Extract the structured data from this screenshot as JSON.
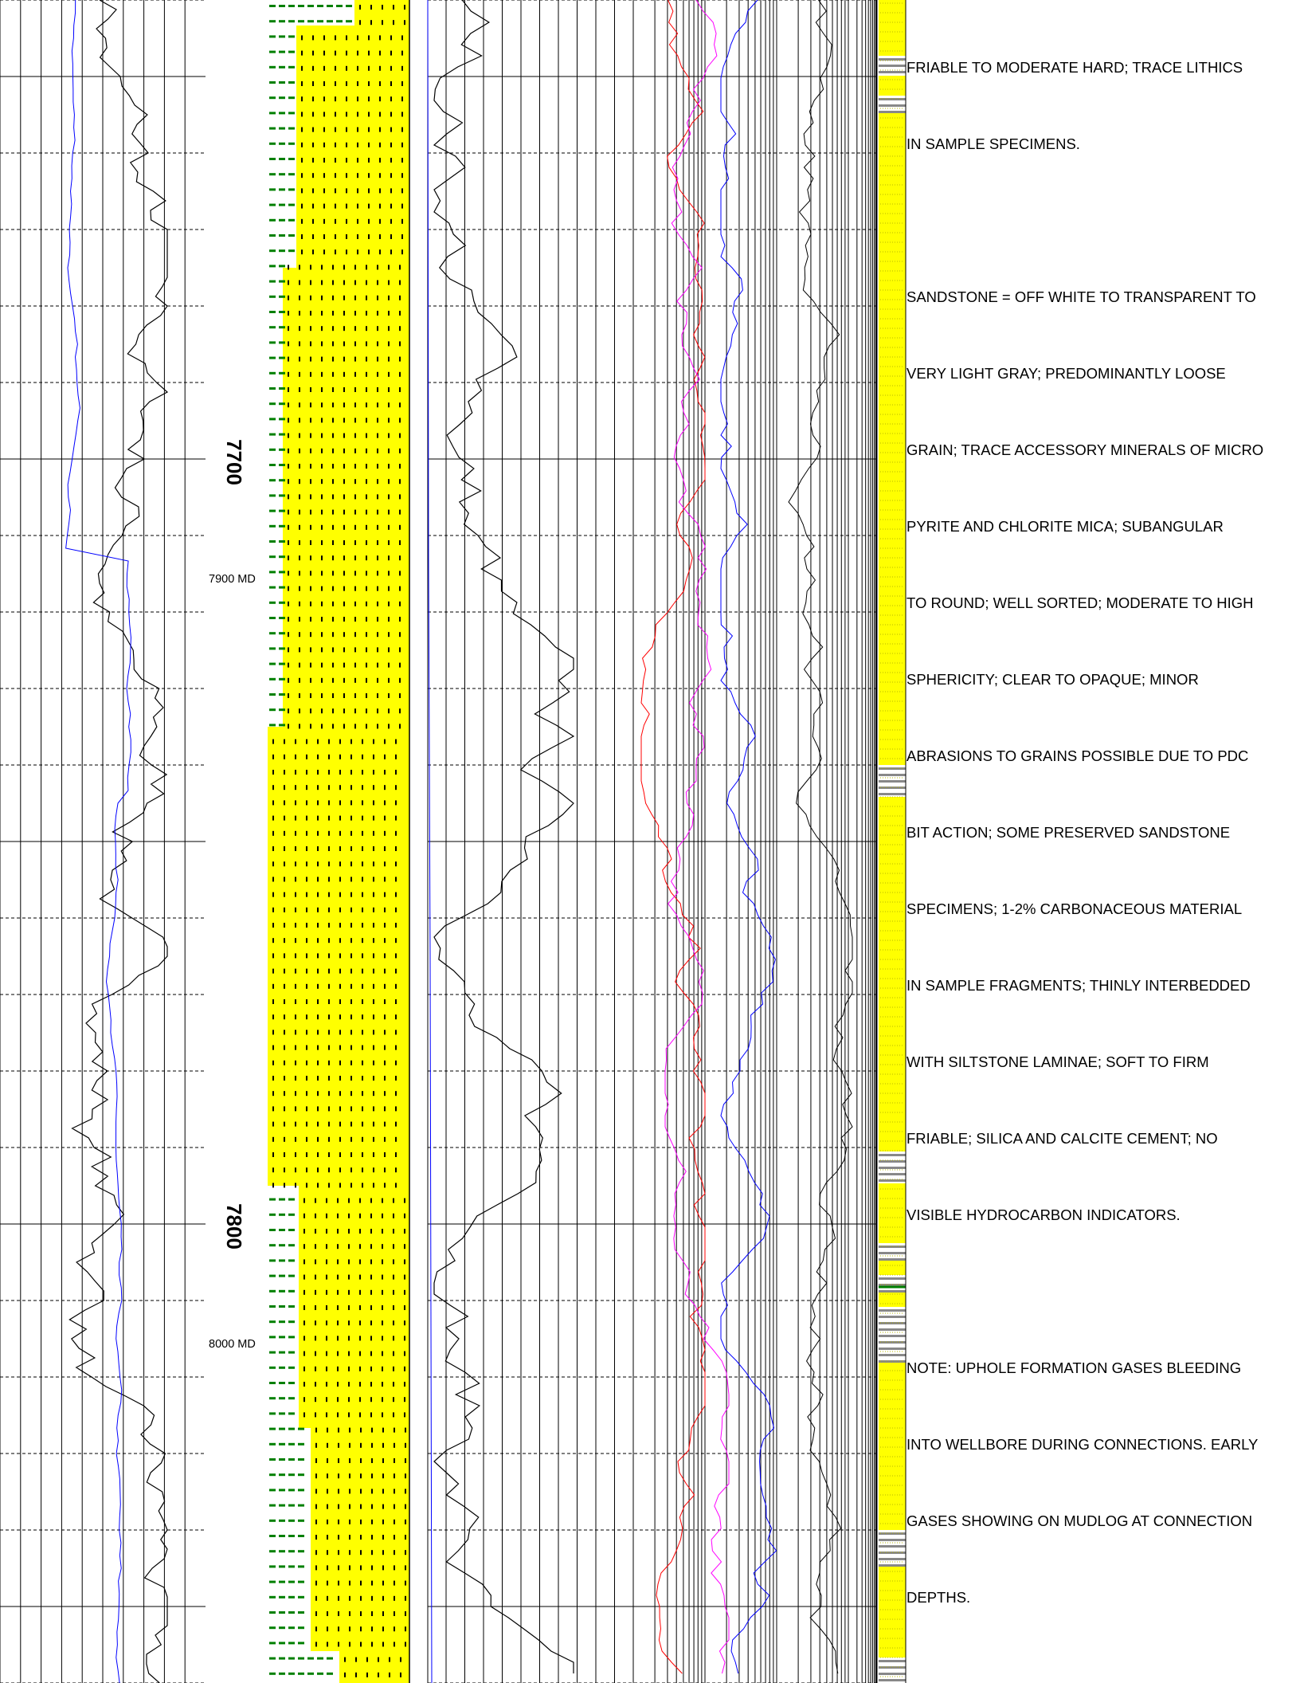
{
  "colors": {
    "sand": "#ffff00",
    "gr_curve": "#000000",
    "blue_curve": "#0000ff",
    "red_curve": "#ff0000",
    "magenta_curve": "#ff00ff",
    "green_dash": "#008000"
  },
  "depth_labels": {
    "d7700": "7700",
    "d7800": "7800",
    "md7900": "7900 MD",
    "md8000": "8000 MD"
  },
  "description_lines": [
    "FRIABLE TO MODERATE HARD; TRACE LITHICS",
    "IN SAMPLE SPECIMENS.",
    "SANDSTONE = OFF WHITE TO TRANSPARENT TO",
    "VERY LIGHT GRAY; PREDOMINANTLY LOOSE",
    "GRAIN; TRACE ACCESSORY MINERALS OF MICRO",
    "PYRITE AND CHLORITE MICA; SUBANGULAR",
    "TO ROUND; WELL SORTED; MODERATE TO HIGH",
    "SPHERICITY; CLEAR TO OPAQUE; MINOR",
    "ABRASIONS TO GRAINS POSSIBLE DUE TO PDC",
    "BIT ACTION; SOME PRESERVED SANDSTONE",
    "SPECIMENS; 1-2% CARBONACEOUS MATERIAL",
    "IN SAMPLE FRAGMENTS; THINLY INTERBEDDED",
    "WITH SILTSTONE LAMINAE; SOFT TO FIRM",
    "FRIABLE; SILICA AND CALCITE CEMENT; NO",
    "VISIBLE HYDROCARBON INDICATORS.",
    "NOTE: UPHOLE FORMATION GASES BLEEDING",
    "INTO WELLBORE DURING CONNECTIONS. EARLY",
    "GASES SHOWING ON MUDLOG AT CONNECTION",
    "DEPTHS."
  ],
  "chart_data": {
    "type": "line",
    "tracks": [
      {
        "name": "",
        "curves": [
          "gamma_ray",
          "rop"
        ]
      },
      {
        "name": "",
        "curves": [
          "lithology_column"
        ]
      },
      {
        "name": "",
        "curves": [
          "total_gas"
        ]
      },
      {
        "name": "",
        "curves": [
          "c1",
          "c2",
          "c3",
          "c4"
        ]
      },
      {
        "name": "",
        "curves": [
          "interpreted_lithology"
        ]
      }
    ],
    "depth_ticks": [
      "7700",
      "7800"
    ],
    "md_ticks": [
      "7900 MD",
      "8000 MD"
    ]
  }
}
